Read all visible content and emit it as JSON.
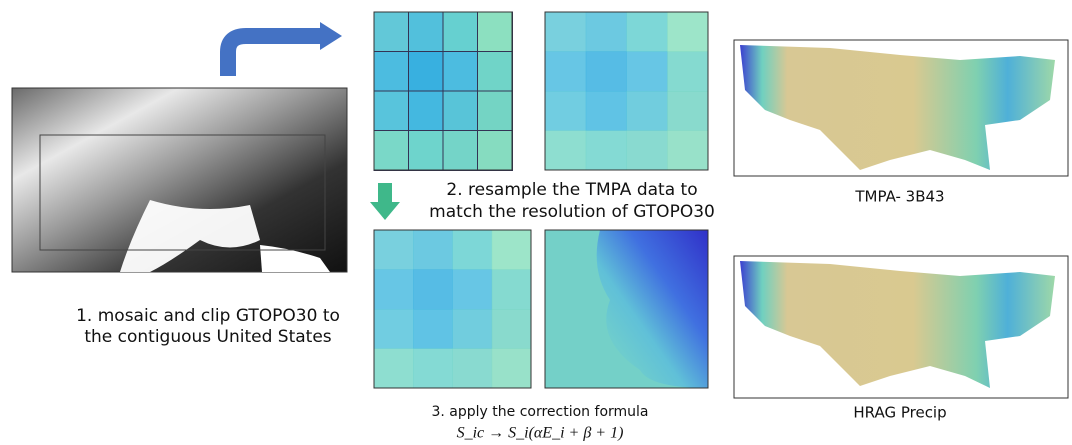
{
  "steps": [
    {
      "lines": [
        "1. mosaic and clip GTOPO30 to",
        "the contiguous United States"
      ]
    },
    {
      "lines": [
        "2. resample the TMPA data to",
        "match the resolution of GTOPO30"
      ]
    },
    {
      "lines": [
        "3. apply the correction formula"
      ],
      "formula": "S_ic → S_i(αE_i + β + 1)"
    }
  ],
  "maps": [
    {
      "label": "TMPA- 3B43"
    },
    {
      "label": "HRAG Precip"
    }
  ]
}
